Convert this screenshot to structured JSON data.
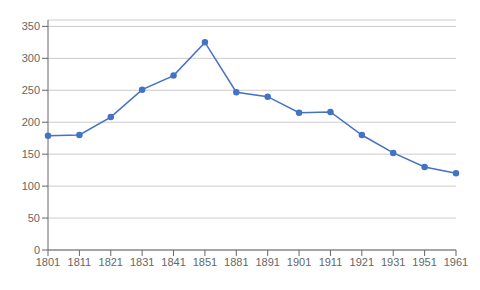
{
  "chart_data": {
    "type": "line",
    "categories": [
      "1801",
      "1811",
      "1821",
      "1831",
      "1841",
      "1851",
      "1881",
      "1891",
      "1901",
      "1911",
      "1921",
      "1931",
      "1951",
      "1961"
    ],
    "values": [
      179,
      180,
      208,
      251,
      273,
      325,
      247,
      240,
      215,
      216,
      180,
      152,
      130,
      120
    ],
    "color": "#4472C4",
    "marker": "circle",
    "ylim": [
      0,
      360
    ],
    "yticks": [
      0,
      50,
      100,
      150,
      200,
      250,
      300,
      350
    ],
    "grid": true
  }
}
